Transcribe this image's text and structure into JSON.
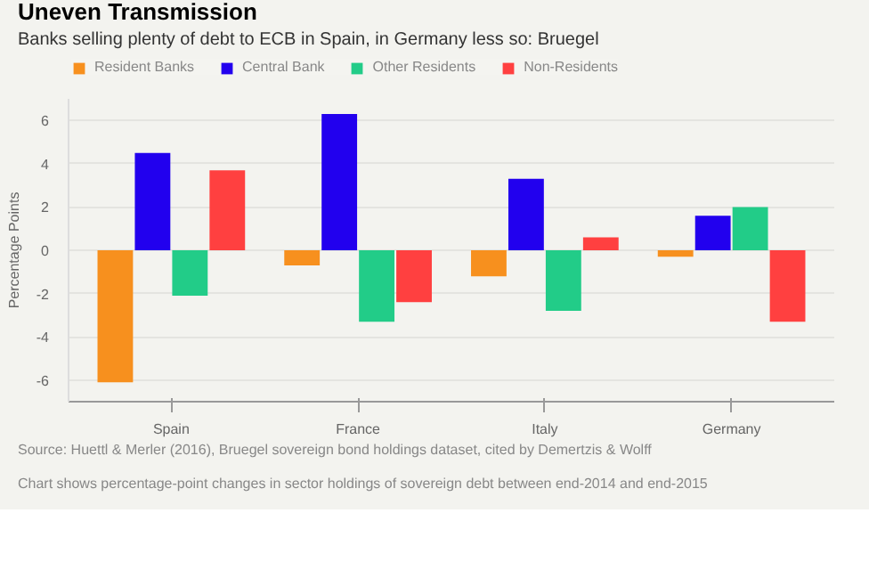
{
  "chart_data": {
    "type": "bar",
    "title": "Uneven Transmission",
    "subtitle": "Banks selling plenty of debt to ECB in Spain, in Germany less so: Bruegel",
    "ylabel": "Percentage Points",
    "categories": [
      "Spain",
      "France",
      "Italy",
      "Germany"
    ],
    "series": [
      {
        "name": "Resident Banks",
        "color": "#f7901e",
        "values": [
          -6.1,
          -0.7,
          -1.2,
          -0.3
        ]
      },
      {
        "name": "Central Bank",
        "color": "#2200ee",
        "values": [
          4.5,
          6.3,
          3.3,
          1.6
        ]
      },
      {
        "name": "Other Residents",
        "color": "#22cc88",
        "values": [
          -2.1,
          -3.3,
          -2.8,
          2.0
        ]
      },
      {
        "name": "Non-Residents",
        "color": "#ff4040",
        "values": [
          3.7,
          -2.4,
          0.6,
          -3.3
        ]
      }
    ],
    "ylim": [
      -7,
      7
    ],
    "yticks": [
      -6,
      -4,
      -2,
      0,
      2,
      4,
      6
    ],
    "grid": "y",
    "legend": "top left",
    "annotations": [
      "Source: Huettl & Merler (2016), Bruegel sovereign bond holdings dataset, cited by Demertzis & Wolff",
      "Chart shows percentage-point changes in sector holdings of sovereign debt between end-2014 and end-2015"
    ]
  }
}
